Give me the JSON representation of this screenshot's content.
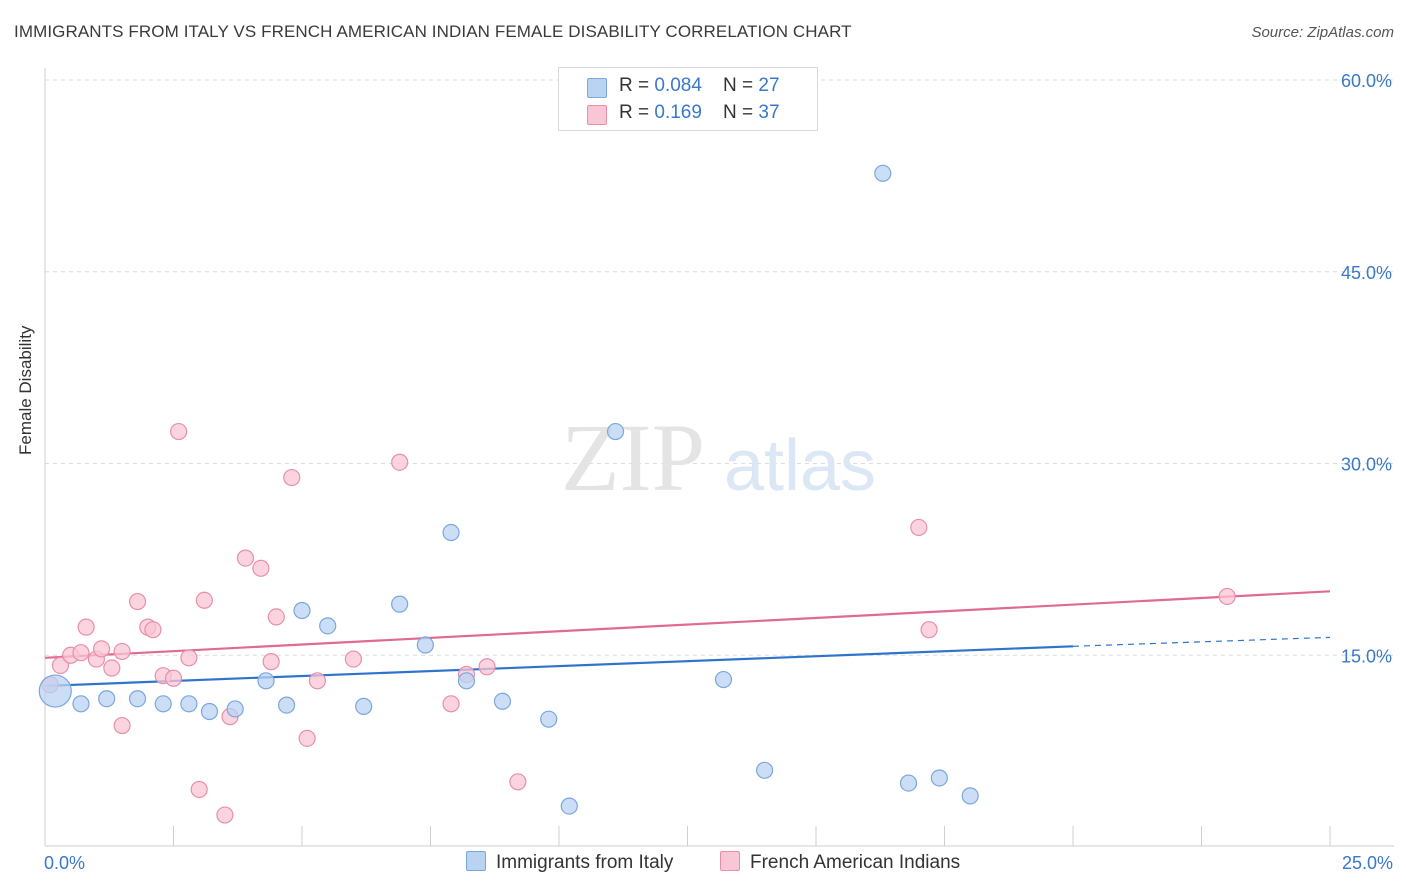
{
  "header": {
    "title": "IMMIGRANTS FROM ITALY VS FRENCH AMERICAN INDIAN FEMALE DISABILITY CORRELATION CHART",
    "source": "Source: ZipAtlas.com"
  },
  "watermark": {
    "zip": "ZIP",
    "atlas": "atlas"
  },
  "legend_top": [
    {
      "r_label": "R = ",
      "r_value": "0.084",
      "n_label": "N = ",
      "n_value": "27"
    },
    {
      "r_label": "R = ",
      "r_value": " 0.169",
      "n_label": "N = ",
      "n_value": "37"
    }
  ],
  "colors": {
    "italy_fill": "#b9d3f3",
    "italy_stroke": "#7aa7dd",
    "italy_line": "#2f74cc",
    "french_fill": "#f9c6d6",
    "french_stroke": "#e88fab",
    "french_line": "#e06a93",
    "axis_label": "#3a78c9",
    "grid": "#dcdcdc"
  },
  "chart_data": {
    "type": "scatter",
    "title": "IMMIGRANTS FROM ITALY VS FRENCH AMERICAN INDIAN FEMALE DISABILITY CORRELATION CHART",
    "xlabel": "",
    "ylabel": "Female Disability",
    "xlim": [
      0,
      25
    ],
    "ylim": [
      0,
      60
    ],
    "x_tick_labels": [
      "0.0%",
      "25.0%"
    ],
    "y_tick_labels": [
      "15.0%",
      "30.0%",
      "45.0%",
      "60.0%"
    ],
    "y_ticks": [
      15,
      30,
      45,
      60
    ],
    "grid": true,
    "legend_position": "bottom",
    "series": [
      {
        "name": "Immigrants from Italy",
        "points": [
          [
            0.2,
            12.2
          ],
          [
            0.7,
            11.2
          ],
          [
            1.2,
            11.6
          ],
          [
            1.8,
            11.6
          ],
          [
            2.3,
            11.2
          ],
          [
            2.8,
            11.2
          ],
          [
            3.2,
            10.6
          ],
          [
            3.7,
            10.8
          ],
          [
            4.3,
            13.0
          ],
          [
            4.7,
            11.1
          ],
          [
            5.0,
            18.5
          ],
          [
            5.5,
            17.3
          ],
          [
            6.2,
            11.0
          ],
          [
            6.9,
            19.0
          ],
          [
            7.4,
            15.8
          ],
          [
            7.9,
            24.6
          ],
          [
            8.2,
            13.0
          ],
          [
            8.9,
            11.4
          ],
          [
            9.8,
            10.0
          ],
          [
            10.2,
            3.2
          ],
          [
            11.1,
            32.5
          ],
          [
            13.2,
            13.1
          ],
          [
            14.0,
            6.0
          ],
          [
            16.3,
            52.7
          ],
          [
            16.8,
            5.0
          ],
          [
            17.4,
            5.4
          ],
          [
            18.0,
            4.0
          ]
        ],
        "trend": {
          "x": [
            0.0,
            20.0
          ],
          "y": [
            12.6,
            15.7
          ],
          "dashed_extension_to": [
            25.0,
            16.4
          ]
        }
      },
      {
        "name": "French American Indians",
        "points": [
          [
            0.1,
            12.7
          ],
          [
            0.3,
            14.2
          ],
          [
            0.5,
            15.0
          ],
          [
            0.7,
            15.2
          ],
          [
            0.8,
            17.2
          ],
          [
            1.0,
            14.7
          ],
          [
            1.1,
            15.5
          ],
          [
            1.3,
            14.0
          ],
          [
            1.5,
            15.3
          ],
          [
            1.5,
            9.5
          ],
          [
            1.8,
            19.2
          ],
          [
            2.0,
            17.2
          ],
          [
            2.1,
            17.0
          ],
          [
            2.3,
            13.4
          ],
          [
            2.5,
            13.2
          ],
          [
            2.6,
            32.5
          ],
          [
            2.8,
            14.8
          ],
          [
            3.0,
            4.5
          ],
          [
            3.1,
            19.3
          ],
          [
            3.5,
            2.5
          ],
          [
            3.6,
            10.2
          ],
          [
            3.9,
            22.6
          ],
          [
            4.2,
            21.8
          ],
          [
            4.4,
            14.5
          ],
          [
            4.5,
            18.0
          ],
          [
            4.8,
            28.9
          ],
          [
            5.1,
            8.5
          ],
          [
            5.3,
            13.0
          ],
          [
            6.0,
            14.7
          ],
          [
            6.9,
            30.1
          ],
          [
            7.9,
            11.2
          ],
          [
            8.2,
            13.5
          ],
          [
            8.6,
            14.1
          ],
          [
            9.2,
            5.1
          ],
          [
            17.0,
            25.0
          ],
          [
            17.2,
            17.0
          ],
          [
            23.0,
            19.6
          ]
        ],
        "trend": {
          "x": [
            0.0,
            25.0
          ],
          "y": [
            14.8,
            20.0
          ]
        }
      }
    ]
  }
}
